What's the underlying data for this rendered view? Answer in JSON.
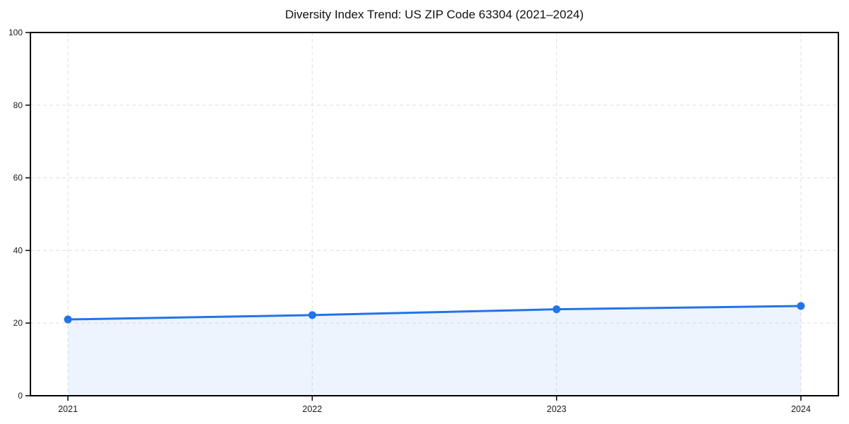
{
  "chart_data": {
    "type": "line",
    "title": "Diversity Index Trend: US ZIP Code 63304 (2021–2024)",
    "x": [
      "2021",
      "2022",
      "2023",
      "2024"
    ],
    "series": [
      {
        "name": "Diversity Index",
        "values": [
          21.0,
          22.2,
          23.8,
          24.7
        ]
      }
    ],
    "xlabel": "",
    "ylabel": "",
    "ylim": [
      0,
      100
    ],
    "yticks": [
      0,
      20,
      40,
      60,
      80,
      100
    ],
    "grid": true,
    "grid_style": "dashed",
    "legend": "none",
    "line_color": "#2274e8",
    "marker_color": "#2274e8",
    "area_fill_color": "#2274e8",
    "area_fill_opacity": 0.08,
    "grid_color": "#e4e4e4",
    "axis_color": "#000000",
    "tick_label_color": "#1a1a1a"
  }
}
